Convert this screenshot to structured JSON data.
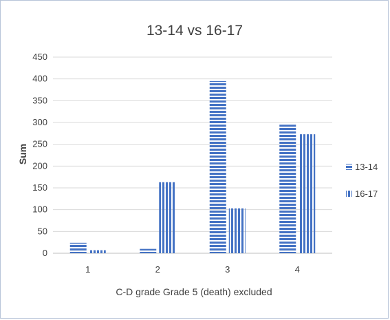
{
  "chart_data": {
    "type": "bar",
    "title": "13-14 vs 16-17",
    "xlabel": "C-D grade Grade 5 (death) excluded",
    "ylabel": "Sum",
    "categories": [
      "1",
      "2",
      "3",
      "4"
    ],
    "series": [
      {
        "name": "13-14",
        "values": [
          24,
          10,
          395,
          295
        ],
        "pattern": "horizontal-stripes",
        "color": "#4472c4"
      },
      {
        "name": "16-17",
        "values": [
          7,
          163,
          103,
          273
        ],
        "pattern": "vertical-stripes",
        "color": "#4472c4"
      }
    ],
    "ylim": [
      0,
      450
    ],
    "yticks": [
      0,
      50,
      100,
      150,
      200,
      250,
      300,
      350,
      400,
      450
    ],
    "grid": true,
    "legend_position": "right"
  }
}
